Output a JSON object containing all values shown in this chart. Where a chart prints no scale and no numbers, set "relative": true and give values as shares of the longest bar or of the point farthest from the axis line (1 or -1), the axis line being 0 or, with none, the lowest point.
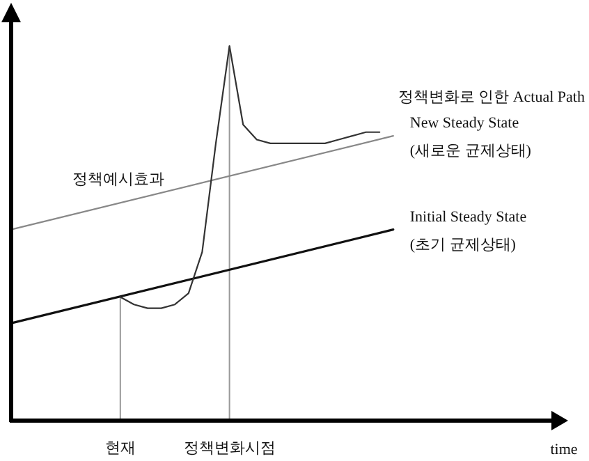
{
  "chart_data": {
    "type": "line",
    "relative": true,
    "xlabel": "time",
    "grid": false,
    "marker": "none",
    "line_style": "solid",
    "categories": [
      null,
      null,
      null,
      null,
      null,
      null,
      null,
      null,
      "현재",
      null,
      null,
      null,
      null,
      null,
      null,
      null,
      "정책변화시점",
      null,
      null,
      null,
      null,
      null,
      null,
      null,
      null,
      null,
      null,
      null,
      null,
      null,
      null,
      null,
      null,
      null,
      null,
      null,
      null,
      null,
      null,
      null,
      null
    ],
    "series": [
      {
        "name": "Initial Steady State\n(초기 균제상태)",
        "color": "#111111",
        "values": [
          0.26,
          null,
          null,
          null,
          null,
          null,
          null,
          null,
          null,
          null,
          null,
          null,
          null,
          null,
          null,
          null,
          null,
          null,
          null,
          null,
          null,
          null,
          null,
          null,
          null,
          null,
          null,
          null,
          0.51,
          null,
          null,
          null,
          null,
          null,
          null,
          null,
          null,
          null,
          null,
          null,
          null
        ]
      },
      {
        "name": "New Steady State\n(새로운 균제상태)",
        "color": "#888888",
        "values": [
          0.51,
          null,
          null,
          null,
          null,
          null,
          null,
          null,
          null,
          null,
          null,
          null,
          null,
          null,
          null,
          null,
          null,
          null,
          null,
          null,
          null,
          null,
          null,
          null,
          null,
          null,
          null,
          null,
          0.76,
          null,
          null,
          null,
          null,
          null,
          null,
          null,
          null,
          null,
          null,
          null,
          null
        ]
      },
      {
        "name": "정책변화로 인한 Actual Path",
        "color": "#333333",
        "values": [
          null,
          null,
          null,
          null,
          null,
          null,
          null,
          null,
          0.33,
          0.31,
          0.3,
          0.3,
          0.31,
          0.34,
          0.45,
          0.74,
          1,
          0.79,
          0.75,
          0.74,
          0.74,
          0.74,
          0.74,
          0.74,
          0.75,
          0.76,
          0.77,
          0.77,
          null,
          null,
          null,
          null,
          null,
          null,
          null,
          null,
          null,
          null,
          null,
          null,
          null
        ]
      }
    ],
    "ref_lines": [
      {
        "axis": "x",
        "value": "현재",
        "color": "#999999"
      },
      {
        "axis": "x",
        "value": "정책변화시점",
        "color": "#999999"
      }
    ],
    "annotations": [
      "정책예시효과"
    ]
  }
}
